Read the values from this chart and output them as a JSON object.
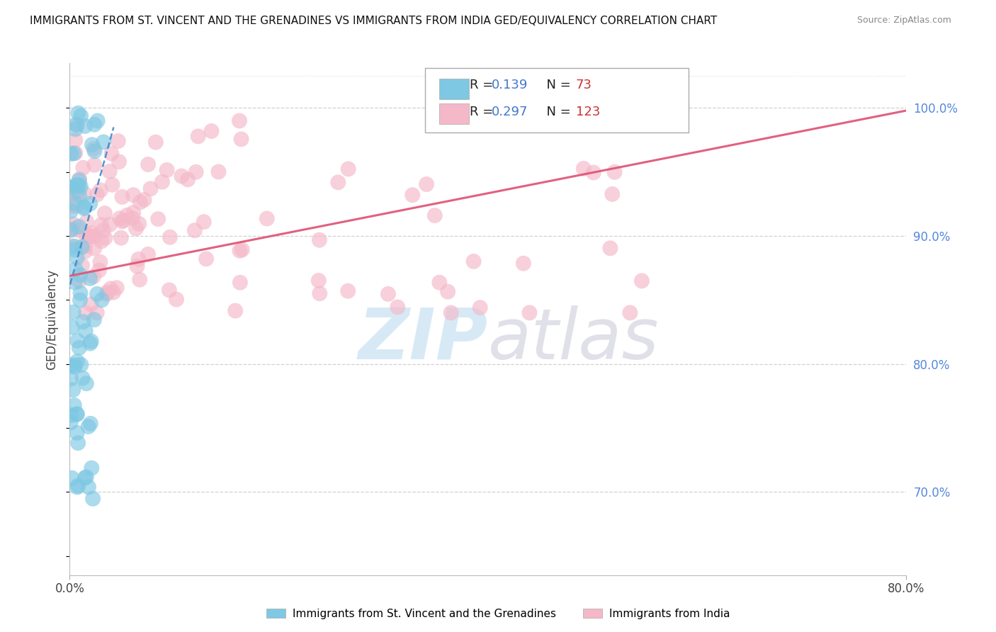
{
  "title": "IMMIGRANTS FROM ST. VINCENT AND THE GRENADINES VS IMMIGRANTS FROM INDIA GED/EQUIVALENCY CORRELATION CHART",
  "source": "Source: ZipAtlas.com",
  "ylabel": "GED/Equivalency",
  "color_blue": "#7ec8e3",
  "color_pink": "#f4b8c8",
  "trendline_blue": "#4488cc",
  "trendline_pink": "#e05878",
  "grid_color": "#cccccc",
  "background_color": "#ffffff",
  "xlim": [
    0.0,
    0.8
  ],
  "ylim": [
    0.635,
    1.035
  ],
  "ytick_values": [
    0.7,
    0.8,
    0.9,
    1.0
  ],
  "ytick_labels": [
    "70.0%",
    "80.0%",
    "90.0%",
    "100.0%"
  ],
  "ytick_color": "#5588dd",
  "r1_color": "#4477cc",
  "n1_color": "#cc3333",
  "legend_label1": "Immigrants from St. Vincent and the Grenadines",
  "legend_label2": "Immigrants from India"
}
